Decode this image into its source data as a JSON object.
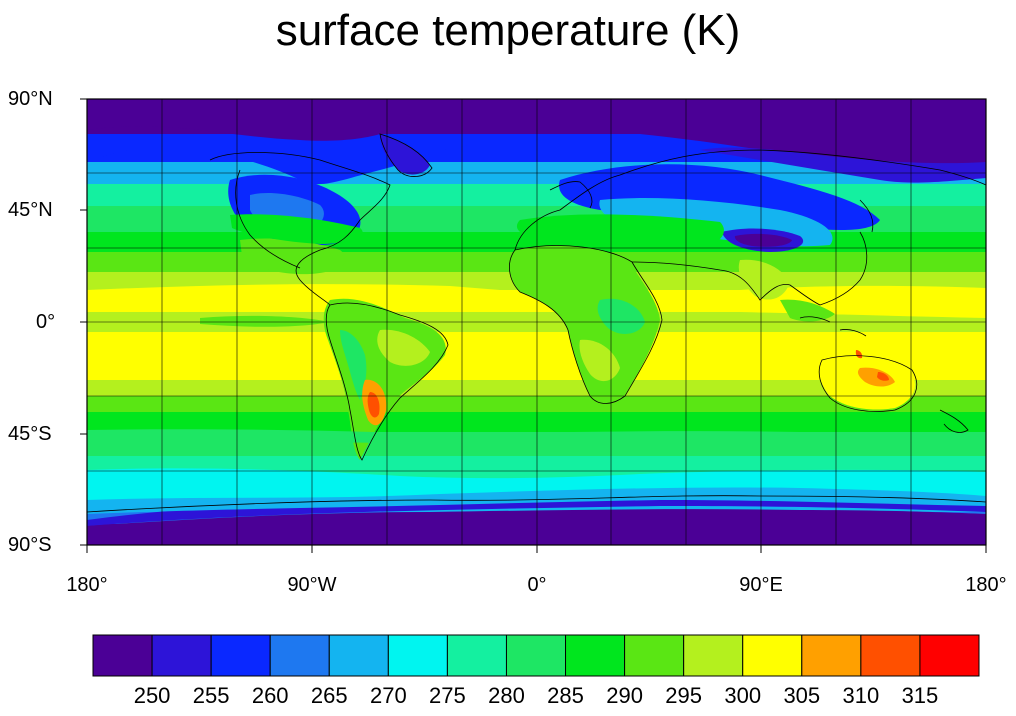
{
  "title": "surface temperature (K)",
  "map": {
    "projection": "cylindrical-equidistant",
    "lat_labels": [
      "90°N",
      "45°N",
      "0°",
      "45°S",
      "90°S"
    ],
    "lon_labels": [
      "180°",
      "90°W",
      "0°",
      "90°E",
      "180°"
    ],
    "grid": true,
    "grid_spacing_deg": 30
  },
  "colorbar": {
    "labels": [
      "250",
      "255",
      "260",
      "265",
      "270",
      "275",
      "280",
      "285",
      "290",
      "295",
      "300",
      "305",
      "310",
      "315"
    ],
    "colors": [
      "#4b0096",
      "#2d14d8",
      "#0a28ff",
      "#1e78f0",
      "#14b4f0",
      "#00f5f0",
      "#14f0a0",
      "#1ee664",
      "#00e61e",
      "#5ae614",
      "#b4f01e",
      "#ffff00",
      "#ffa000",
      "#ff5000",
      "#ff0000"
    ]
  }
}
